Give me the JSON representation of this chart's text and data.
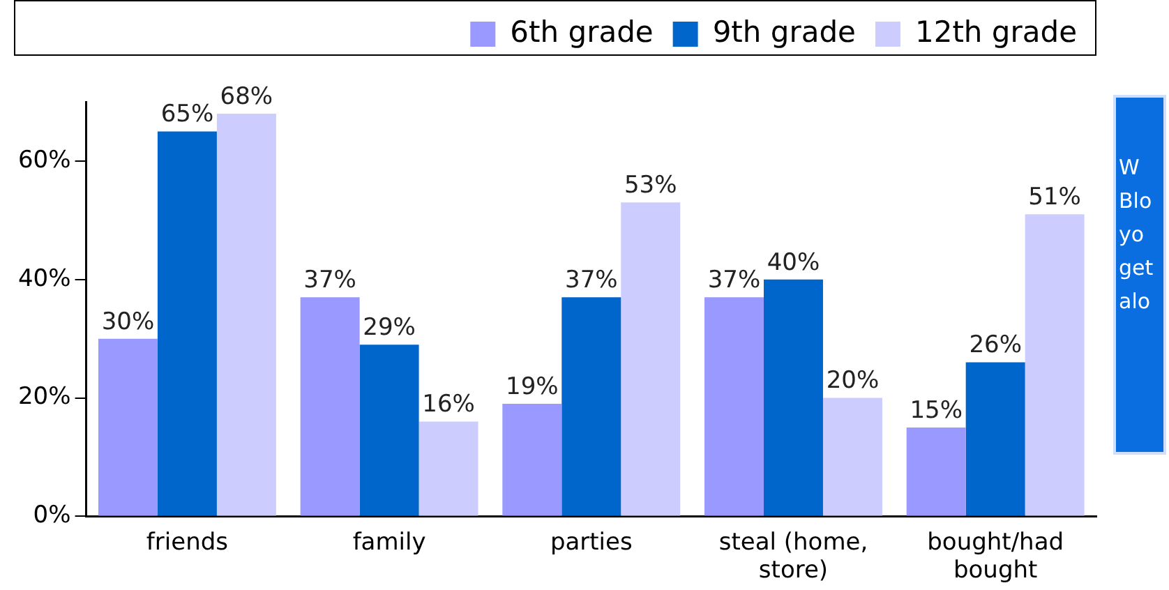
{
  "chart_data": {
    "type": "bar",
    "categories": [
      "friends",
      "family",
      "parties",
      "steal (home, store)",
      "bought/had bought"
    ],
    "series": [
      {
        "name": "6th grade",
        "color": "#9999ff",
        "values": [
          30,
          37,
          19,
          37,
          15
        ],
        "value_labels": [
          "30%",
          "37%",
          "19%",
          "37%",
          "15%"
        ]
      },
      {
        "name": "9th grade",
        "color": "#0066cc",
        "values": [
          65,
          29,
          37,
          40,
          26
        ],
        "value_labels": [
          "65%",
          "29%",
          "37%",
          "40%",
          "26%"
        ]
      },
      {
        "name": "12th grade",
        "color": "#ccccff",
        "values": [
          68,
          16,
          53,
          20,
          51
        ],
        "value_labels": [
          "68%",
          "16%",
          "53%",
          "20%",
          "51%"
        ]
      }
    ],
    "ylim": [
      0,
      70
    ],
    "yticks": [
      {
        "value": 0,
        "label": "0%"
      },
      {
        "value": 20,
        "label": "20%"
      },
      {
        "value": 40,
        "label": "40%"
      },
      {
        "value": 60,
        "label": "60%"
      }
    ],
    "grid": false,
    "legend": "top right",
    "annotations": [
      "W Blo yo get alo"
    ]
  }
}
